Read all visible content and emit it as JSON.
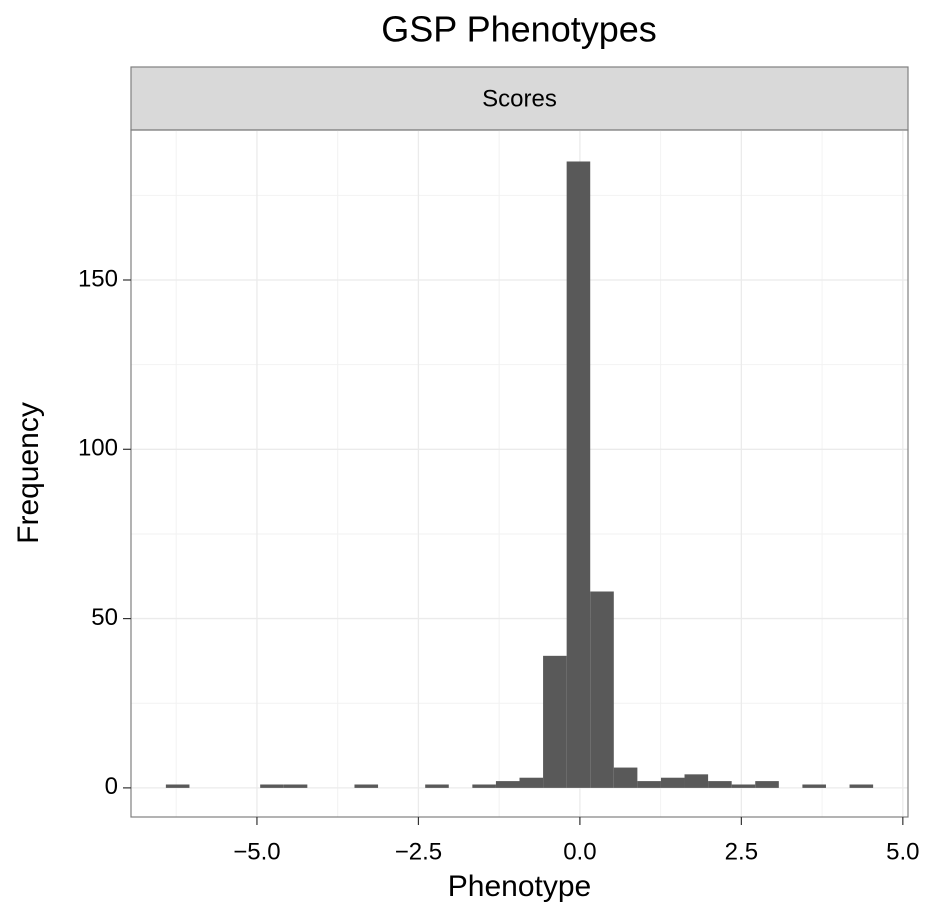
{
  "chart_data": {
    "type": "histogram",
    "title": "GSP Phenotypes",
    "facet_label": "Scores",
    "x_label": "Phenotype",
    "y_label": "Frequency",
    "bins": [
      -6.41,
      -6.045,
      -5.68,
      -5.315,
      -4.95,
      -4.585,
      -4.22,
      -3.855,
      -3.49,
      -3.125,
      -2.76,
      -2.395,
      -2.03,
      -1.665,
      -1.3,
      -0.935,
      -0.57,
      -0.205,
      0.16,
      0.525,
      0.89,
      1.255,
      1.62,
      1.985,
      2.35,
      2.715,
      3.08,
      3.445,
      3.81,
      4.175,
      4.54
    ],
    "values": [
      1,
      0,
      0,
      0,
      1,
      1,
      0,
      0,
      1,
      0,
      0,
      1,
      0,
      1,
      2,
      3,
      39,
      185,
      58,
      6,
      2,
      3,
      4,
      2,
      1,
      2,
      0,
      1,
      0,
      1
    ],
    "color": "#595959",
    "xlim": [
      -6.95,
      5.08
    ],
    "ylim": [
      -8.6,
      194.3
    ],
    "xticks": [
      {
        "value": -5,
        "label": "−5.0"
      },
      {
        "value": -2.5,
        "label": "−2.5"
      },
      {
        "value": 0,
        "label": "0.0"
      },
      2.5,
      {
        "value": 5,
        "label": "5.0"
      }
    ],
    "yticks": [
      0,
      50,
      100,
      150
    ],
    "minor_xticks": [
      -6.25,
      -3.75,
      -1.25,
      1.25,
      3.75
    ],
    "minor_yticks": [
      25,
      75,
      125,
      175
    ],
    "grid": true
  }
}
